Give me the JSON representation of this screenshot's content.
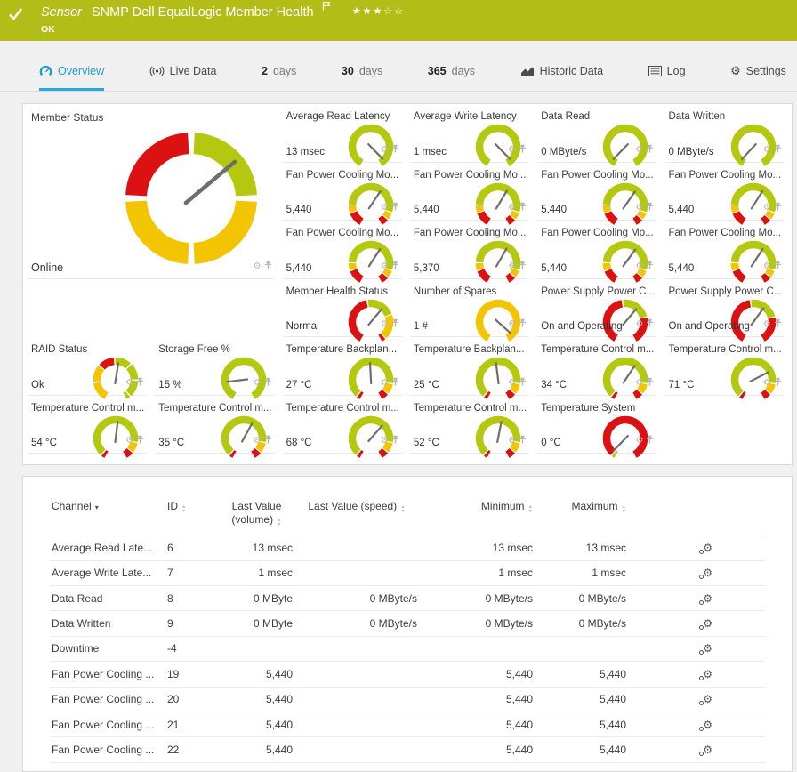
{
  "header": {
    "kind_label": "Sensor",
    "title": "SNMP Dell EqualLogic Member Health",
    "status": "OK",
    "stars_filled": 3,
    "stars_total": 5
  },
  "tabs": [
    {
      "id": "overview",
      "label": "Overview",
      "icon": "gauge-icon",
      "active": true
    },
    {
      "id": "live-data",
      "label": "Live Data",
      "icon": "broadcast-icon"
    },
    {
      "id": "2-days",
      "num": "2",
      "label": "days"
    },
    {
      "id": "30-days",
      "num": "30",
      "label": "days"
    },
    {
      "id": "365-days",
      "num": "365",
      "label": "days"
    },
    {
      "id": "historic-data",
      "label": "Historic Data",
      "icon": "chart-icon"
    },
    {
      "id": "log",
      "label": "Log",
      "icon": "log-icon"
    },
    {
      "id": "settings",
      "label": "Settings",
      "icon": "gear-icon"
    }
  ],
  "colors": {
    "header_bg": "#b2be17",
    "tab_active": "#1d9cd9",
    "tab_underline": "#2aa7e1",
    "needle": "#6e6e6e",
    "gauge": {
      "g": "#b4c80f",
      "y": "#f2c500",
      "r": "#dc1111"
    }
  },
  "gauges": {
    "schemes": {
      "member_big": {
        "segments": [
          [
            3,
            87,
            "g"
          ],
          [
            93,
            177,
            "y"
          ],
          [
            183,
            267,
            "y"
          ],
          [
            273,
            357,
            "r"
          ]
        ]
      },
      "plain_green": {
        "segments": [
          [
            -150,
            150,
            "g"
          ]
        ]
      },
      "plain_yellow": {
        "segments": [
          [
            -150,
            150,
            "y"
          ]
        ]
      },
      "fan": {
        "segments": [
          [
            -150,
            -112,
            "r"
          ],
          [
            -109,
            -90,
            "y"
          ],
          [
            -87,
            107,
            "g"
          ],
          [
            110,
            128,
            "y"
          ],
          [
            131,
            150,
            "r"
          ]
        ]
      },
      "temp": {
        "segments": [
          [
            -150,
            -141,
            "r"
          ],
          [
            -137,
            99,
            "g"
          ],
          [
            102,
            128,
            "y"
          ],
          [
            131,
            150,
            "r"
          ]
        ]
      },
      "health": {
        "segments": [
          [
            -150,
            -12,
            "r"
          ],
          [
            -8,
            68,
            "g"
          ],
          [
            71,
            137,
            "y"
          ],
          [
            140,
            150,
            "r"
          ]
        ]
      },
      "psu": {
        "segments": [
          [
            -150,
            -10,
            "r"
          ],
          [
            -6,
            75,
            "g"
          ],
          [
            78,
            150,
            "r"
          ]
        ]
      },
      "raid": {
        "segments": [
          [
            -150,
            -99,
            "y"
          ],
          [
            -95,
            -51,
            "y"
          ],
          [
            -47,
            -5,
            "r"
          ],
          [
            -1,
            42,
            "g"
          ],
          [
            46,
            89,
            "g"
          ],
          [
            93,
            136,
            "g"
          ],
          [
            140,
            150,
            "g"
          ]
        ]
      },
      "system": {
        "segments": [
          [
            -150,
            -143,
            "g"
          ],
          [
            -139,
            150,
            "r"
          ]
        ]
      }
    },
    "cells": [
      {
        "id": "member-status",
        "label": "Member Status",
        "value": "Online",
        "scheme": "member_big",
        "needle": 50,
        "col": 0,
        "row": 0,
        "colspan": 2,
        "rowspan": 3,
        "big": true
      },
      {
        "id": "avg-read-latency",
        "label": "Average Read Latency",
        "value": "13 msec",
        "scheme": "plain_green",
        "needle": 136,
        "col": 2,
        "row": 0
      },
      {
        "id": "avg-write-latency",
        "label": "Average Write Latency",
        "value": "1 msec",
        "scheme": "plain_green",
        "needle": 136,
        "col": 3,
        "row": 0
      },
      {
        "id": "data-read",
        "label": "Data Read",
        "value": "0 MByte/s",
        "scheme": "plain_green",
        "needle": -136,
        "col": 4,
        "row": 0
      },
      {
        "id": "data-written",
        "label": "Data Written",
        "value": "0 MByte/s",
        "scheme": "plain_green",
        "needle": -137,
        "col": 5,
        "row": 0
      },
      {
        "id": "fan-1",
        "label": "Fan Power Cooling Mo...",
        "value": "5,440",
        "scheme": "fan",
        "needle": 34,
        "col": 2,
        "row": 1
      },
      {
        "id": "fan-2",
        "label": "Fan Power Cooling Mo...",
        "value": "5,440",
        "scheme": "fan",
        "needle": 31,
        "col": 3,
        "row": 1
      },
      {
        "id": "fan-3",
        "label": "Fan Power Cooling Mo...",
        "value": "5,440",
        "scheme": "fan",
        "needle": 35,
        "col": 4,
        "row": 1
      },
      {
        "id": "fan-4",
        "label": "Fan Power Cooling Mo...",
        "value": "5,440",
        "scheme": "fan",
        "needle": 32,
        "col": 5,
        "row": 1
      },
      {
        "id": "fan-5",
        "label": "Fan Power Cooling Mo...",
        "value": "5,440",
        "scheme": "fan",
        "needle": 33,
        "col": 2,
        "row": 2
      },
      {
        "id": "fan-6",
        "label": "Fan Power Cooling Mo...",
        "value": "5,370",
        "scheme": "fan",
        "needle": 30,
        "col": 3,
        "row": 2
      },
      {
        "id": "fan-7",
        "label": "Fan Power Cooling Mo...",
        "value": "5,440",
        "scheme": "fan",
        "needle": 36,
        "col": 4,
        "row": 2
      },
      {
        "id": "fan-8",
        "label": "Fan Power Cooling Mo...",
        "value": "5,440",
        "scheme": "fan",
        "needle": 33,
        "col": 5,
        "row": 2
      },
      {
        "id": "member-health",
        "label": "Member Health Status",
        "value": "Normal",
        "scheme": "health",
        "needle": 40,
        "col": 2,
        "row": 3
      },
      {
        "id": "number-of-spares",
        "label": "Number of Spares",
        "value": "1 #",
        "scheme": "plain_yellow",
        "needle": 132,
        "col": 3,
        "row": 3
      },
      {
        "id": "psu-1",
        "label": "Power Supply Power C...",
        "value": "On and Operating",
        "scheme": "psu",
        "needle": 40,
        "col": 4,
        "row": 3
      },
      {
        "id": "psu-2",
        "label": "Power Supply Power C...",
        "value": "On and Operating",
        "scheme": "psu",
        "needle": 36,
        "col": 5,
        "row": 3
      },
      {
        "id": "raid-status",
        "label": "RAID Status",
        "value": "Ok",
        "scheme": "raid",
        "needle": 9,
        "col": 0,
        "row": 4
      },
      {
        "id": "storage-free",
        "label": "Storage Free %",
        "value": "15 %",
        "scheme": "plain_green",
        "needle": -97,
        "col": 1,
        "row": 4
      },
      {
        "id": "temp-backplane-1",
        "label": "Temperature Backplan...",
        "value": "27 °C",
        "scheme": "temp",
        "needle": -3,
        "col": 2,
        "row": 4
      },
      {
        "id": "temp-backplane-2",
        "label": "Temperature Backplan...",
        "value": "25 °C",
        "scheme": "temp",
        "needle": -7,
        "col": 3,
        "row": 4
      },
      {
        "id": "temp-control-1",
        "label": "Temperature Control m...",
        "value": "34 °C",
        "scheme": "temp",
        "needle": 34,
        "col": 4,
        "row": 4
      },
      {
        "id": "temp-control-2",
        "label": "Temperature Control m...",
        "value": "71 °C",
        "scheme": "temp",
        "needle": 63,
        "col": 5,
        "row": 4
      },
      {
        "id": "temp-control-3",
        "label": "Temperature Control m...",
        "value": "54 °C",
        "scheme": "temp",
        "needle": 7,
        "col": 0,
        "row": 5
      },
      {
        "id": "temp-control-4",
        "label": "Temperature Control m...",
        "value": "35 °C",
        "scheme": "temp",
        "needle": 29,
        "col": 1,
        "row": 5
      },
      {
        "id": "temp-control-5",
        "label": "Temperature Control m...",
        "value": "68 °C",
        "scheme": "temp",
        "needle": 41,
        "col": 2,
        "row": 5
      },
      {
        "id": "temp-control-6",
        "label": "Temperature Control m...",
        "value": "52 °C",
        "scheme": "temp",
        "needle": 11,
        "col": 3,
        "row": 5
      },
      {
        "id": "temp-system",
        "label": "Temperature System",
        "value": "0 °C",
        "scheme": "system",
        "needle": -136,
        "col": 4,
        "row": 5
      }
    ]
  },
  "table": {
    "headers": [
      {
        "label": "Channel",
        "sort": "desc"
      },
      {
        "label": "ID",
        "sort": "both"
      },
      {
        "label": "Last Value (volume)",
        "sort": "both"
      },
      {
        "label": "Last Value (speed)",
        "sort": "both"
      },
      {
        "label": "Minimum",
        "sort": "both"
      },
      {
        "label": "Maximum",
        "sort": "both"
      },
      {
        "label": "",
        "sort": ""
      }
    ],
    "rows": [
      {
        "channel": "Average Read Late...",
        "id": "6",
        "volume": "13 msec",
        "speed": "",
        "min": "13 msec",
        "max": "13 msec"
      },
      {
        "channel": "Average Write Late...",
        "id": "7",
        "volume": "1 msec",
        "speed": "",
        "min": "1 msec",
        "max": "1 msec"
      },
      {
        "channel": "Data Read",
        "id": "8",
        "volume": "0 MByte",
        "speed": "0 MByte/s",
        "min": "0 MByte/s",
        "max": "0 MByte/s"
      },
      {
        "channel": "Data Written",
        "id": "9",
        "volume": "0 MByte",
        "speed": "0 MByte/s",
        "min": "0 MByte/s",
        "max": "0 MByte/s"
      },
      {
        "channel": "Downtime",
        "id": "-4",
        "volume": "",
        "speed": "",
        "min": "",
        "max": ""
      },
      {
        "channel": "Fan Power Cooling ...",
        "id": "19",
        "volume": "5,440",
        "speed": "",
        "min": "5,440",
        "max": "5,440"
      },
      {
        "channel": "Fan Power Cooling ...",
        "id": "20",
        "volume": "5,440",
        "speed": "",
        "min": "5,440",
        "max": "5,440"
      },
      {
        "channel": "Fan Power Cooling ...",
        "id": "21",
        "volume": "5,440",
        "speed": "",
        "min": "5,440",
        "max": "5,440"
      },
      {
        "channel": "Fan Power Cooling ...",
        "id": "22",
        "volume": "5,440",
        "speed": "",
        "min": "5,440",
        "max": "5,440"
      }
    ]
  }
}
